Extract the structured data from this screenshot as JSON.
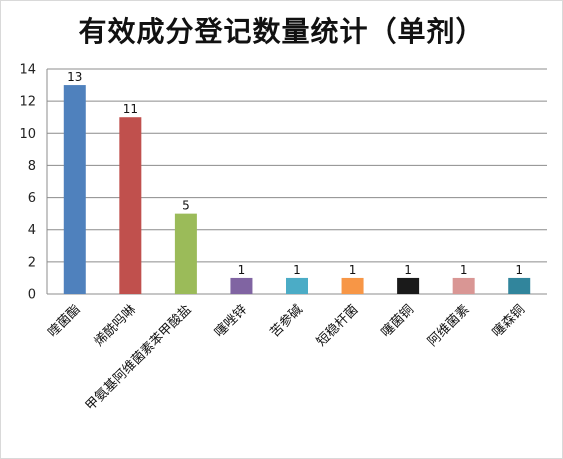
{
  "chart_data": {
    "type": "bar",
    "title": "有效成分登记数量统计（单剂）",
    "xlabel": "",
    "ylabel": "",
    "ylim": [
      0,
      14
    ],
    "yticks": [
      0,
      2,
      4,
      6,
      8,
      10,
      12,
      14
    ],
    "grid": true,
    "legend": "none",
    "categories": [
      "喹菌酯",
      "烯酰吗啉",
      "甲氨基阿维菌素苯甲酸盐",
      "噻唑锌",
      "苦参碱",
      "短稳杆菌",
      "噻菌铜",
      "阿维菌素",
      "噻森铜"
    ],
    "values": [
      13,
      11,
      5,
      1,
      1,
      1,
      1,
      1,
      1
    ],
    "colors": [
      "#4f81bd",
      "#c0504d",
      "#9bbb59",
      "#8064a2",
      "#4bacc6",
      "#f79646",
      "#1a1a1a",
      "#d99694",
      "#31859c"
    ]
  }
}
